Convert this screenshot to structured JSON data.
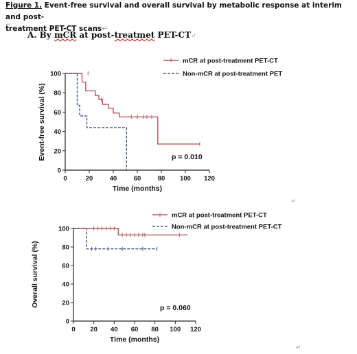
{
  "caption": {
    "figure_label": "Figure 1.",
    "text_line1": " Event-free survival and overall survival by metabolic response at interim and post-",
    "text_line2": "treatment PET-CT scans",
    "para_mark": "↵"
  },
  "section": {
    "prefix": "A.  By ",
    "mcr": "mCR",
    "middle": " at post-",
    "treatmet": "treatmet",
    "suffix": " PET-CT",
    "para_mark": "↵"
  },
  "marks": {
    "para": "↵",
    "corner": "↵"
  },
  "chart_data": [
    {
      "type": "line",
      "subtype": "kaplan-meier",
      "title": "",
      "xlabel": "Time (months)",
      "ylabel": "Event-free survival (%)",
      "xlim": [
        0,
        120
      ],
      "ylim": [
        0,
        100
      ],
      "xticks": [
        0,
        20,
        40,
        60,
        80,
        100,
        120
      ],
      "yticks": [
        0,
        20,
        40,
        60,
        80,
        100
      ],
      "legend_position": "top-right",
      "annotation": "p = 0.010",
      "series": [
        {
          "name": "mCR at post-treatment PET-CT",
          "color": "#b5585c",
          "line_style": "solid",
          "steps": [
            [
              0,
              100
            ],
            [
              14,
              100
            ],
            [
              14,
              91
            ],
            [
              17,
              91
            ],
            [
              17,
              82
            ],
            [
              25,
              82
            ],
            [
              25,
              77
            ],
            [
              28,
              77
            ],
            [
              28,
              73
            ],
            [
              31,
              73
            ],
            [
              31,
              68
            ],
            [
              36,
              68
            ],
            [
              36,
              64
            ],
            [
              40,
              64
            ],
            [
              40,
              59
            ],
            [
              45,
              59
            ],
            [
              45,
              55
            ],
            [
              77,
              55
            ],
            [
              77,
              27
            ],
            [
              112,
              27
            ]
          ],
          "censored": [
            [
              19,
              100
            ],
            [
              30,
              73
            ],
            [
              55,
              55
            ],
            [
              60,
              55
            ],
            [
              65,
              55
            ],
            [
              68,
              55
            ],
            [
              72,
              55
            ],
            [
              112,
              27
            ]
          ]
        },
        {
          "name": "Non-mCR at post-treatment PET",
          "color": "#4a5a8c",
          "line_style": "dashed",
          "steps": [
            [
              0,
              100
            ],
            [
              10,
              100
            ],
            [
              10,
              67
            ],
            [
              12,
              67
            ],
            [
              12,
              56
            ],
            [
              18,
              56
            ],
            [
              18,
              44
            ],
            [
              51,
              44
            ],
            [
              51,
              0
            ]
          ],
          "censored": []
        }
      ]
    },
    {
      "type": "line",
      "subtype": "kaplan-meier",
      "title": "",
      "xlabel": "Time (months)",
      "ylabel": "Overall survival (%)",
      "xlim": [
        0,
        120
      ],
      "ylim": [
        0,
        100
      ],
      "xticks": [
        0,
        20,
        40,
        60,
        80,
        100,
        120
      ],
      "yticks": [
        0,
        20,
        40,
        60,
        80,
        100
      ],
      "legend_position": "top-right",
      "annotation": "p = 0.060",
      "series": [
        {
          "name": "mCR at post-treatment PET-CT",
          "color": "#b5585c",
          "line_style": "solid",
          "steps": [
            [
              0,
              100
            ],
            [
              44,
              100
            ],
            [
              44,
              93
            ],
            [
              112,
              93
            ]
          ],
          "censored": [
            [
              20,
              100
            ],
            [
              24,
              100
            ],
            [
              28,
              100
            ],
            [
              32,
              100
            ],
            [
              36,
              100
            ],
            [
              40,
              100
            ],
            [
              48,
              93
            ],
            [
              52,
              93
            ],
            [
              56,
              93
            ],
            [
              60,
              93
            ],
            [
              64,
              93
            ],
            [
              68,
              93
            ],
            [
              70,
              93
            ],
            [
              104,
              93
            ]
          ]
        },
        {
          "name": "Non-mCR at post-treatment PET-CT",
          "color": "#4a5a8c",
          "line_style": "dashed",
          "steps": [
            [
              0,
              100
            ],
            [
              13,
              100
            ],
            [
              13,
              78
            ],
            [
              82,
              78
            ]
          ],
          "censored": [
            [
              18,
              78
            ],
            [
              22,
              78
            ],
            [
              34,
              78
            ],
            [
              48,
              78
            ],
            [
              68,
              78
            ],
            [
              82,
              78
            ]
          ]
        }
      ]
    }
  ]
}
